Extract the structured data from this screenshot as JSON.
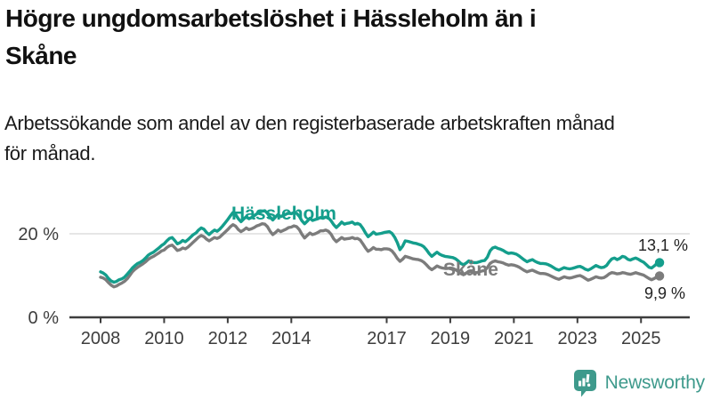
{
  "title": {
    "line1": "Högre ungdomsarbetslöshet i Hässleholm än i",
    "line2": "Skåne"
  },
  "subtitle": {
    "line1": "Arbetssökande som andel av den registerbaserade arbetskraften månad",
    "line2": "för månad."
  },
  "footer": {
    "brand": "Newsworthy",
    "logo_icon": "bar-chart-speech-bubble-icon"
  },
  "colors": {
    "hassleholm_teal": "#149e8c",
    "skane_gray": "#7c7c7c",
    "axis": "#3d3d3d",
    "grid": "#d8d8d8",
    "value_label": "#222222",
    "brand_teal": "#3e9a8c"
  },
  "chart_data": {
    "type": "line",
    "title": "Högre ungdomsarbetslöshet i Hässleholm än i Skåne",
    "subtitle": "Arbetssökande som andel av den registerbaserade arbetskraften månad för månad.",
    "x_unit": "month",
    "x_start": "2008-01",
    "x_end": "2025-08",
    "grid": "horizontal line at 20 % only",
    "legend_position": "inline labels on lines",
    "ylim": [
      0,
      29
    ],
    "y_ticks": [
      {
        "value": 20,
        "label": "20 %"
      },
      {
        "value": 0,
        "label": "0 %"
      }
    ],
    "x_ticks": [
      {
        "year": 2008,
        "label": "2008"
      },
      {
        "year": 2010,
        "label": "2010"
      },
      {
        "year": 2012,
        "label": "2012"
      },
      {
        "year": 2014,
        "label": "2014"
      },
      {
        "year": 2017,
        "label": "2017"
      },
      {
        "year": 2019,
        "label": "2019"
      },
      {
        "year": 2021,
        "label": "2021"
      },
      {
        "year": 2023,
        "label": "2023"
      },
      {
        "year": 2025,
        "label": "2025"
      }
    ],
    "series": [
      {
        "name": "Hässleholm",
        "color": "#149e8c",
        "end_label": "13,1 %",
        "end_value": 13.1,
        "values": [
          10.9,
          10.6,
          10.1,
          9.3,
          8.7,
          8.4,
          8.6,
          9.0,
          9.2,
          9.6,
          10.3,
          11.0,
          11.8,
          12.4,
          12.9,
          13.2,
          13.6,
          14.2,
          14.9,
          15.3,
          15.6,
          16.1,
          16.6,
          17.2,
          17.6,
          18.3,
          18.9,
          19.1,
          18.4,
          17.6,
          17.9,
          18.4,
          18.1,
          18.6,
          19.2,
          19.8,
          20.2,
          20.9,
          21.4,
          21.1,
          20.3,
          19.8,
          20.4,
          20.9,
          20.6,
          21.1,
          21.8,
          22.6,
          23.4,
          24.3,
          25.1,
          24.6,
          23.6,
          22.9,
          23.5,
          24.1,
          23.6,
          23.9,
          24.3,
          24.8,
          25.1,
          25.4,
          25.5,
          24.9,
          24.0,
          23.3,
          24.0,
          24.6,
          24.1,
          24.4,
          24.7,
          25.0,
          24.8,
          25.1,
          24.9,
          24.2,
          23.1,
          22.4,
          23.0,
          23.7,
          23.2,
          23.4,
          23.6,
          23.9,
          23.7,
          24.0,
          23.8,
          23.1,
          22.2,
          21.5,
          22.1,
          22.8,
          22.3,
          22.5,
          22.6,
          22.8,
          22.3,
          22.5,
          22.2,
          21.3,
          20.2,
          19.3,
          19.8,
          20.4,
          19.9,
          20.0,
          20.1,
          20.3,
          20.4,
          20.5,
          20.1,
          19.2,
          17.9,
          16.2,
          17.0,
          18.3,
          18.2,
          18.0,
          17.8,
          17.7,
          17.5,
          17.3,
          16.9,
          16.2,
          15.3,
          14.6,
          15.1,
          15.6,
          15.1,
          14.8,
          14.6,
          14.5,
          14.4,
          14.3,
          14.0,
          13.5,
          12.9,
          12.6,
          13.0,
          13.5,
          13.2,
          13.1,
          13.1,
          13.3,
          13.5,
          13.6,
          14.4,
          15.9,
          16.6,
          16.8,
          16.5,
          16.3,
          16.0,
          15.6,
          15.3,
          15.4,
          15.3,
          15.1,
          14.7,
          14.2,
          13.7,
          13.3,
          13.6,
          13.8,
          13.4,
          13.1,
          12.9,
          12.9,
          12.8,
          12.6,
          12.3,
          11.9,
          11.5,
          11.3,
          11.6,
          11.9,
          11.7,
          11.6,
          11.7,
          11.9,
          12.1,
          12.2,
          11.9,
          11.5,
          11.3,
          11.6,
          12.0,
          12.4,
          12.1,
          11.9,
          12.0,
          12.4,
          13.3,
          14.0,
          14.2,
          13.8,
          14.1,
          14.6,
          14.4,
          13.9,
          13.7,
          14.0,
          14.2,
          13.9,
          13.5,
          13.2,
          12.6,
          12.0,
          11.8,
          12.3,
          12.9,
          13.1
        ]
      },
      {
        "name": "Skåne",
        "color": "#7c7c7c",
        "end_label": "9,9 %",
        "end_value": 9.9,
        "values": [
          9.6,
          9.4,
          9.0,
          8.3,
          7.7,
          7.3,
          7.5,
          7.9,
          8.2,
          8.6,
          9.2,
          10.0,
          10.9,
          11.5,
          12.0,
          12.4,
          12.8,
          13.3,
          13.9,
          14.3,
          14.6,
          15.0,
          15.4,
          15.9,
          16.1,
          16.7,
          17.1,
          17.3,
          16.7,
          16.0,
          16.2,
          16.6,
          16.4,
          16.8,
          17.4,
          18.0,
          18.6,
          19.2,
          19.6,
          19.3,
          18.7,
          18.3,
          18.7,
          19.1,
          18.9,
          19.2,
          19.8,
          20.4,
          21.0,
          21.7,
          22.2,
          21.8,
          21.0,
          20.5,
          20.9,
          21.4,
          21.0,
          21.2,
          21.5,
          21.9,
          22.1,
          22.4,
          22.3,
          21.7,
          20.6,
          19.8,
          20.3,
          20.9,
          20.5,
          20.8,
          21.1,
          21.5,
          21.6,
          21.9,
          21.7,
          21.0,
          19.9,
          19.0,
          19.6,
          20.2,
          19.8,
          20.0,
          20.3,
          20.7,
          20.7,
          20.9,
          20.6,
          19.9,
          18.8,
          18.1,
          18.6,
          19.1,
          18.7,
          18.8,
          18.9,
          19.1,
          18.8,
          18.9,
          18.5,
          17.6,
          16.6,
          15.8,
          16.2,
          16.7,
          16.3,
          16.3,
          16.2,
          16.4,
          16.4,
          16.3,
          15.9,
          15.1,
          14.1,
          13.4,
          13.9,
          14.6,
          14.4,
          14.2,
          14.0,
          13.9,
          13.8,
          13.6,
          13.2,
          12.6,
          11.9,
          11.4,
          11.8,
          12.3,
          12.0,
          11.8,
          11.7,
          11.7,
          11.8,
          11.7,
          11.4,
          11.0,
          10.5,
          10.2,
          10.6,
          11.0,
          10.8,
          10.7,
          10.7,
          10.9,
          11.1,
          11.2,
          11.9,
          12.9,
          13.3,
          13.5,
          13.3,
          13.2,
          13.0,
          12.7,
          12.5,
          12.6,
          12.5,
          12.3,
          12.0,
          11.6,
          11.2,
          10.9,
          11.1,
          11.3,
          11.0,
          10.7,
          10.5,
          10.5,
          10.4,
          10.2,
          9.9,
          9.6,
          9.3,
          9.1,
          9.4,
          9.7,
          9.5,
          9.4,
          9.5,
          9.7,
          9.9,
          10.0,
          9.7,
          9.3,
          8.9,
          9.1,
          9.4,
          9.7,
          9.5,
          9.4,
          9.5,
          9.9,
          10.4,
          10.7,
          10.6,
          10.4,
          10.5,
          10.7,
          10.6,
          10.4,
          10.3,
          10.5,
          10.7,
          10.5,
          10.3,
          10.1,
          9.7,
          9.3,
          9.0,
          9.3,
          9.7,
          9.9
        ]
      }
    ]
  }
}
